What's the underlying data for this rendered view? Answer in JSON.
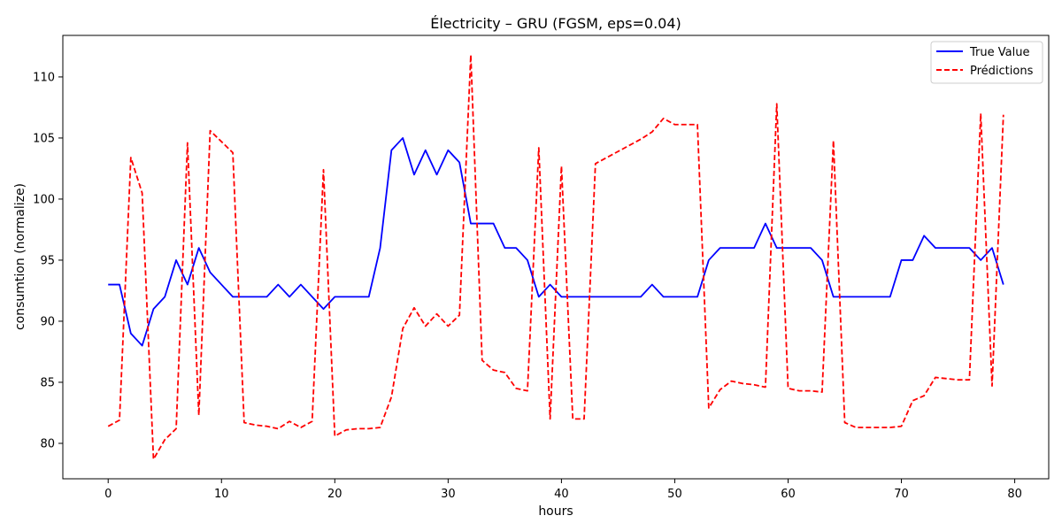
{
  "chart_data": {
    "type": "line",
    "title": "Électricity – GRU (FGSM, eps=0.04)",
    "xlabel": "hours",
    "ylabel": "consumtion (normalize)",
    "xlim": [
      -4,
      83
    ],
    "ylim": [
      77.1,
      113.4
    ],
    "xticks": [
      0,
      10,
      20,
      30,
      40,
      50,
      60,
      70,
      80
    ],
    "yticks": [
      80,
      85,
      90,
      95,
      100,
      105,
      110
    ],
    "legend_position": "top-right",
    "grid": false,
    "series": [
      {
        "name": "True Value",
        "color": "#0000ff",
        "style": "solid",
        "x": [
          0,
          1,
          2,
          3,
          4,
          5,
          6,
          7,
          8,
          9,
          10,
          11,
          12,
          13,
          14,
          15,
          16,
          17,
          18,
          19,
          20,
          21,
          22,
          23,
          24,
          25,
          26,
          27,
          28,
          29,
          30,
          31,
          32,
          33,
          34,
          35,
          36,
          37,
          38,
          39,
          40,
          41,
          42,
          43,
          44,
          45,
          46,
          47,
          48,
          49,
          50,
          51,
          52,
          53,
          54,
          55,
          56,
          57,
          58,
          59,
          60,
          61,
          62,
          63,
          64,
          65,
          66,
          67,
          68,
          69,
          70,
          71,
          72,
          73,
          74,
          75,
          76,
          77,
          78,
          79
        ],
        "values": [
          93,
          93,
          89,
          88,
          91,
          92,
          95,
          93,
          96,
          94,
          93,
          92,
          92,
          92,
          92,
          93,
          92,
          93,
          92,
          91,
          92,
          92,
          92,
          92,
          96,
          104,
          105,
          102,
          104,
          102,
          104,
          103,
          98,
          98,
          98,
          96,
          96,
          95,
          92,
          93,
          92,
          92,
          92,
          92,
          92,
          92,
          92,
          92,
          93,
          92,
          92,
          92,
          92,
          95,
          96,
          96,
          96,
          96,
          98,
          96,
          96,
          96,
          96,
          95,
          92,
          92,
          92,
          92,
          92,
          92,
          95,
          95,
          97,
          96,
          96,
          96,
          96,
          95,
          96,
          93
        ]
      },
      {
        "name": "Prédictions",
        "color": "#ff0000",
        "style": "dashed",
        "x": [
          0,
          1,
          2,
          3,
          4,
          5,
          6,
          7,
          8,
          9,
          10,
          11,
          12,
          13,
          14,
          15,
          16,
          17,
          18,
          19,
          20,
          21,
          22,
          23,
          24,
          25,
          26,
          27,
          28,
          29,
          30,
          31,
          32,
          33,
          34,
          35,
          36,
          37,
          38,
          39,
          40,
          41,
          42,
          43,
          44,
          45,
          46,
          47,
          48,
          49,
          50,
          51,
          52,
          53,
          54,
          55,
          56,
          57,
          58,
          59,
          60,
          61,
          62,
          63,
          64,
          65,
          66,
          67,
          68,
          69,
          70,
          71,
          72,
          73,
          74,
          75,
          76,
          77,
          78,
          79
        ],
        "values": [
          81.4,
          81.9,
          103.4,
          100.5,
          78.7,
          80.3,
          81.2,
          104.6,
          82.3,
          105.6,
          104.7,
          103.8,
          81.7,
          81.5,
          81.4,
          81.2,
          81.8,
          81.3,
          81.8,
          102.4,
          80.6,
          81.1,
          81.2,
          81.2,
          81.3,
          83.8,
          89.4,
          91.1,
          89.6,
          90.6,
          89.6,
          90.5,
          111.8,
          86.8,
          86.0,
          85.8,
          84.5,
          84.3,
          104.2,
          82.0,
          102.7,
          82.0,
          82.0,
          102.9,
          103.4,
          103.9,
          104.4,
          104.9,
          105.5,
          106.6,
          106.1,
          106.1,
          106.1,
          82.9,
          84.4,
          85.1,
          84.9,
          84.8,
          84.6,
          107.8,
          84.5,
          84.3,
          84.3,
          84.2,
          104.8,
          81.7,
          81.3,
          81.3,
          81.3,
          81.3,
          81.4,
          83.5,
          83.9,
          85.4,
          85.3,
          85.2,
          85.2,
          107.0,
          84.7,
          106.9
        ]
      }
    ]
  }
}
